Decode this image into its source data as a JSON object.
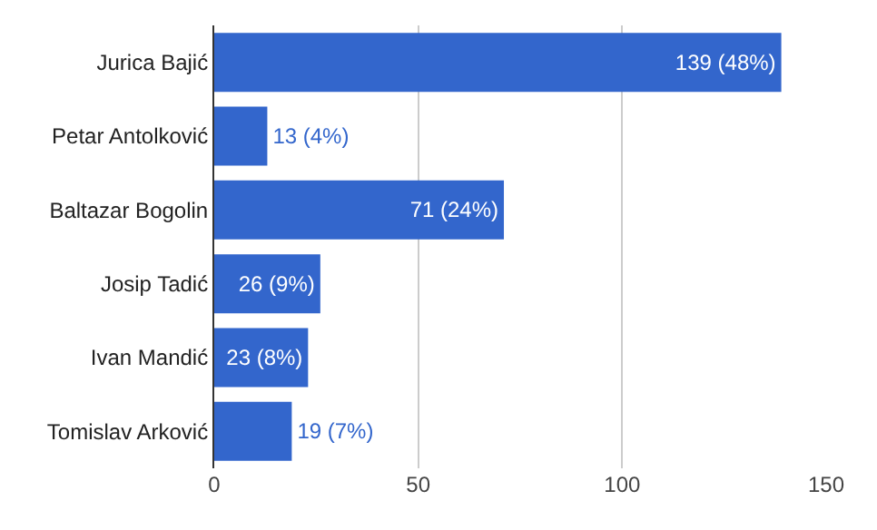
{
  "chart_data": {
    "type": "bar",
    "orientation": "horizontal",
    "categories": [
      "Jurica Bajić",
      "Petar Antolković",
      "Baltazar Bogolin",
      "Josip Tadić",
      "Ivan Mandić",
      "Tomislav Arković"
    ],
    "values": [
      139,
      13,
      71,
      26,
      23,
      19
    ],
    "value_labels": [
      "139 (48%)",
      "13 (4%)",
      "71 (24%)",
      "26 (9%)",
      "23 (8%)",
      "19 (7%)"
    ],
    "color": "#3366cc",
    "xlim": [
      0,
      150
    ],
    "xticks": [
      0,
      50,
      100,
      150
    ],
    "grid": "x"
  }
}
